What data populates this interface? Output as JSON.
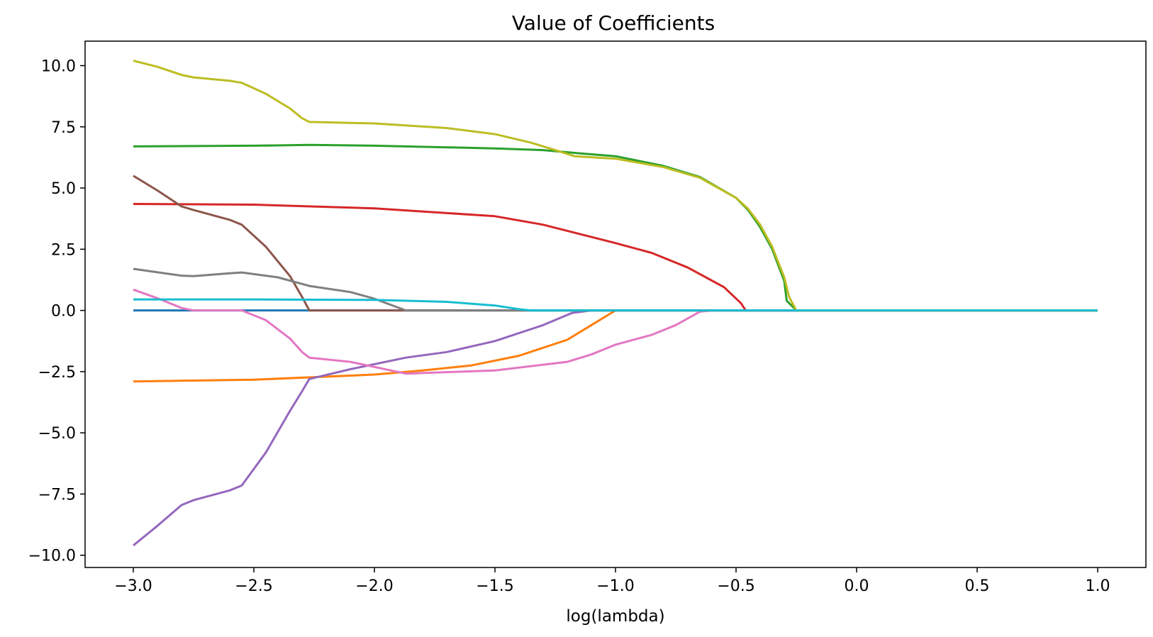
{
  "chart_data": {
    "type": "line",
    "title": "Value of Coefficients",
    "xlabel": "log(lambda)",
    "ylabel": "",
    "xlim": [
      -3.2,
      1.2
    ],
    "ylim": [
      -10.5,
      11.0
    ],
    "xticks": [
      -3.0,
      -2.5,
      -2.0,
      -1.5,
      -1.0,
      -0.5,
      0.0,
      0.5,
      1.0
    ],
    "xtick_labels": [
      "−3.0",
      "−2.5",
      "−2.0",
      "−1.5",
      "−1.0",
      "−0.5",
      "0.0",
      "0.5",
      "1.0"
    ],
    "yticks": [
      10.0,
      7.5,
      5.0,
      2.5,
      0.0,
      -2.5,
      -5.0,
      -7.5,
      -10.0
    ],
    "ytick_labels": [
      "10.0",
      "7.5",
      "5.0",
      "2.5",
      "0.0",
      "−2.5",
      "−5.0",
      "−7.5",
      "−10.0"
    ],
    "grid": false,
    "legend": "none",
    "series": [
      {
        "color": "#1f77b4",
        "points": [
          [
            -3.0,
            0.0
          ],
          [
            1.0,
            0.0
          ]
        ]
      },
      {
        "color": "#ff7f0e",
        "points": [
          [
            -3.0,
            -2.9
          ],
          [
            -2.5,
            -2.83
          ],
          [
            -2.0,
            -2.62
          ],
          [
            -1.8,
            -2.45
          ],
          [
            -1.6,
            -2.25
          ],
          [
            -1.4,
            -1.85
          ],
          [
            -1.2,
            -1.2
          ],
          [
            -1.1,
            -0.6
          ],
          [
            -1.0,
            0.0
          ],
          [
            1.0,
            0.0
          ]
        ]
      },
      {
        "color": "#2ca02c",
        "points": [
          [
            -3.0,
            6.7
          ],
          [
            -2.5,
            6.73
          ],
          [
            -2.27,
            6.76
          ],
          [
            -2.0,
            6.73
          ],
          [
            -1.5,
            6.62
          ],
          [
            -1.3,
            6.55
          ],
          [
            -1.15,
            6.42
          ],
          [
            -1.0,
            6.3
          ],
          [
            -0.8,
            5.9
          ],
          [
            -0.65,
            5.45
          ],
          [
            -0.5,
            4.6
          ],
          [
            -0.45,
            4.1
          ],
          [
            -0.4,
            3.4
          ],
          [
            -0.35,
            2.5
          ],
          [
            -0.3,
            1.2
          ],
          [
            -0.29,
            0.4
          ],
          [
            -0.25,
            0.0
          ],
          [
            1.0,
            0.0
          ]
        ]
      },
      {
        "color": "#d62728",
        "points": [
          [
            -3.0,
            4.35
          ],
          [
            -2.5,
            4.32
          ],
          [
            -2.0,
            4.17
          ],
          [
            -1.5,
            3.85
          ],
          [
            -1.3,
            3.5
          ],
          [
            -1.1,
            3.0
          ],
          [
            -1.0,
            2.75
          ],
          [
            -0.85,
            2.35
          ],
          [
            -0.7,
            1.75
          ],
          [
            -0.55,
            0.95
          ],
          [
            -0.48,
            0.3
          ],
          [
            -0.46,
            0.0
          ],
          [
            1.0,
            0.0
          ]
        ]
      },
      {
        "color": "#9467bd",
        "points": [
          [
            -3.0,
            -9.6
          ],
          [
            -2.9,
            -8.8
          ],
          [
            -2.8,
            -7.95
          ],
          [
            -2.75,
            -7.75
          ],
          [
            -2.6,
            -7.35
          ],
          [
            -2.55,
            -7.15
          ],
          [
            -2.45,
            -5.8
          ],
          [
            -2.35,
            -4.1
          ],
          [
            -2.3,
            -3.3
          ],
          [
            -2.27,
            -2.8
          ],
          [
            -2.1,
            -2.4
          ],
          [
            -1.87,
            -1.93
          ],
          [
            -1.7,
            -1.7
          ],
          [
            -1.5,
            -1.25
          ],
          [
            -1.3,
            -0.6
          ],
          [
            -1.18,
            -0.1
          ],
          [
            -1.1,
            0.0
          ],
          [
            1.0,
            0.0
          ]
        ]
      },
      {
        "color": "#8c564b",
        "points": [
          [
            -3.0,
            5.5
          ],
          [
            -2.9,
            4.9
          ],
          [
            -2.8,
            4.25
          ],
          [
            -2.75,
            4.1
          ],
          [
            -2.6,
            3.7
          ],
          [
            -2.55,
            3.5
          ],
          [
            -2.45,
            2.6
          ],
          [
            -2.35,
            1.4
          ],
          [
            -2.3,
            0.55
          ],
          [
            -2.27,
            0.0
          ],
          [
            1.0,
            0.0
          ]
        ]
      },
      {
        "color": "#e377c2",
        "points": [
          [
            -3.0,
            0.85
          ],
          [
            -2.9,
            0.5
          ],
          [
            -2.8,
            0.1
          ],
          [
            -2.75,
            0.0
          ],
          [
            -2.55,
            0.0
          ],
          [
            -2.45,
            -0.4
          ],
          [
            -2.35,
            -1.15
          ],
          [
            -2.3,
            -1.7
          ],
          [
            -2.27,
            -1.93
          ],
          [
            -2.1,
            -2.1
          ],
          [
            -1.87,
            -2.58
          ],
          [
            -1.5,
            -2.45
          ],
          [
            -1.2,
            -2.1
          ],
          [
            -1.1,
            -1.8
          ],
          [
            -1.0,
            -1.4
          ],
          [
            -0.85,
            -1.0
          ],
          [
            -0.75,
            -0.6
          ],
          [
            -0.65,
            -0.05
          ],
          [
            -0.6,
            0.0
          ],
          [
            1.0,
            0.0
          ]
        ]
      },
      {
        "color": "#7f7f7f",
        "points": [
          [
            -3.0,
            1.7
          ],
          [
            -2.8,
            1.42
          ],
          [
            -2.75,
            1.4
          ],
          [
            -2.6,
            1.52
          ],
          [
            -2.55,
            1.55
          ],
          [
            -2.4,
            1.35
          ],
          [
            -2.27,
            1.0
          ],
          [
            -2.1,
            0.75
          ],
          [
            -2.0,
            0.48
          ],
          [
            -1.87,
            0.0
          ],
          [
            1.0,
            0.0
          ]
        ]
      },
      {
        "color": "#bcbd22",
        "points": [
          [
            -3.0,
            10.2
          ],
          [
            -2.9,
            9.95
          ],
          [
            -2.8,
            9.62
          ],
          [
            -2.75,
            9.52
          ],
          [
            -2.6,
            9.38
          ],
          [
            -2.55,
            9.3
          ],
          [
            -2.45,
            8.85
          ],
          [
            -2.35,
            8.25
          ],
          [
            -2.3,
            7.85
          ],
          [
            -2.27,
            7.7
          ],
          [
            -2.0,
            7.64
          ],
          [
            -1.7,
            7.45
          ],
          [
            -1.5,
            7.2
          ],
          [
            -1.35,
            6.85
          ],
          [
            -1.25,
            6.55
          ],
          [
            -1.17,
            6.3
          ],
          [
            -1.0,
            6.2
          ],
          [
            -0.8,
            5.85
          ],
          [
            -0.65,
            5.42
          ],
          [
            -0.5,
            4.6
          ],
          [
            -0.45,
            4.15
          ],
          [
            -0.4,
            3.5
          ],
          [
            -0.35,
            2.6
          ],
          [
            -0.3,
            1.35
          ],
          [
            -0.28,
            0.55
          ],
          [
            -0.25,
            0.0
          ],
          [
            1.0,
            0.0
          ]
        ]
      },
      {
        "color": "#17becf",
        "points": [
          [
            -3.0,
            0.45
          ],
          [
            -2.5,
            0.45
          ],
          [
            -2.0,
            0.43
          ],
          [
            -1.7,
            0.35
          ],
          [
            -1.5,
            0.2
          ],
          [
            -1.4,
            0.05
          ],
          [
            -1.35,
            0.0
          ],
          [
            1.0,
            0.0
          ]
        ]
      }
    ]
  }
}
